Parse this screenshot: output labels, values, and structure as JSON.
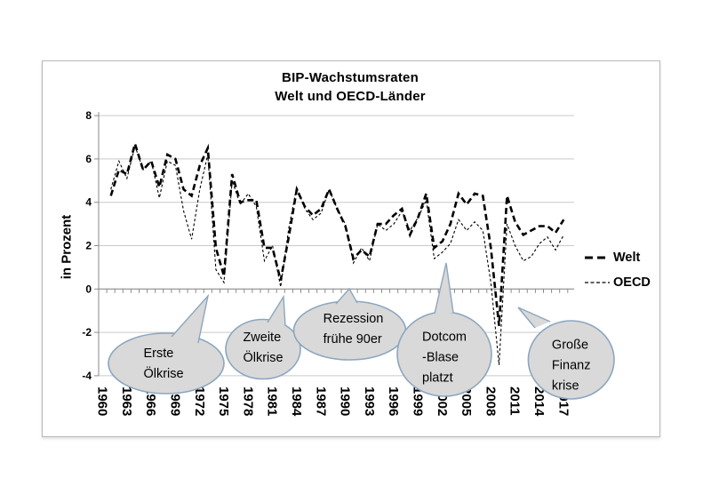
{
  "chart": {
    "title_line1": "BIP-Wachstumsraten",
    "title_line2": "Welt und OECD-Länder",
    "y_axis_title": "in Prozent"
  },
  "colors": {
    "series": "#000000",
    "gridline": "#c9c9c9",
    "axis": "#8a8a8a",
    "bubble_fill": "#d9d9d9",
    "bubble_stroke": "#8ca6bf",
    "chart_border": "#b8b8b8"
  },
  "chart_data": {
    "type": "line",
    "title": "BIP-Wachstumsraten Welt und OECD-Länder",
    "xlabel": "",
    "ylabel": "in Prozent",
    "ylim": [
      -4,
      8
    ],
    "grid": true,
    "legend_position": "right",
    "y_ticks": [
      8,
      6,
      4,
      2,
      0,
      -2,
      -4
    ],
    "y_tick_labels": [
      "8",
      "6",
      "4",
      "2",
      "0",
      "-2",
      "-4"
    ],
    "x_range": [
      1960,
      2017
    ],
    "x_tick_labels": [
      "1960",
      "1963",
      "1966",
      "1969",
      "1972",
      "1975",
      "1978",
      "1981",
      "1984",
      "1987",
      "1990",
      "1993",
      "1996",
      "1999",
      "2002",
      "2005",
      "2008",
      "2011",
      "2014",
      "2017"
    ],
    "years": [
      1961,
      1962,
      1963,
      1964,
      1965,
      1966,
      1967,
      1968,
      1969,
      1970,
      1971,
      1972,
      1973,
      1974,
      1975,
      1976,
      1977,
      1978,
      1979,
      1980,
      1981,
      1982,
      1983,
      1984,
      1985,
      1986,
      1987,
      1988,
      1989,
      1990,
      1991,
      1992,
      1993,
      1994,
      1995,
      1996,
      1997,
      1998,
      1999,
      2000,
      2001,
      2002,
      2003,
      2004,
      2005,
      2006,
      2007,
      2008,
      2009,
      2010,
      2011,
      2012,
      2013,
      2014,
      2015,
      2016,
      2017
    ],
    "series": [
      {
        "name": "Welt",
        "line_style": "bold-long-dashes",
        "values": [
          4.3,
          5.5,
          5.3,
          6.7,
          5.5,
          5.9,
          4.7,
          6.2,
          6.0,
          4.6,
          4.3,
          5.7,
          6.5,
          1.9,
          0.6,
          5.3,
          4.0,
          4.1,
          4.1,
          1.9,
          1.9,
          0.4,
          2.4,
          4.6,
          3.8,
          3.4,
          3.7,
          4.6,
          3.7,
          2.9,
          1.4,
          1.8,
          1.5,
          3.0,
          3.0,
          3.4,
          3.7,
          2.5,
          3.3,
          4.4,
          1.9,
          2.2,
          3.0,
          4.4,
          3.9,
          4.4,
          4.3,
          1.9,
          -1.7,
          4.3,
          3.1,
          2.5,
          2.7,
          2.9,
          2.9,
          2.6,
          3.2
        ]
      },
      {
        "name": "OECD",
        "line_style": "thin-short-dashes",
        "values": [
          4.6,
          5.9,
          5.1,
          6.6,
          5.5,
          5.9,
          4.2,
          5.9,
          5.7,
          3.6,
          2.3,
          4.6,
          6.2,
          0.9,
          0.3,
          5.0,
          3.9,
          4.4,
          3.8,
          1.3,
          2.0,
          0.1,
          2.8,
          4.7,
          3.7,
          3.2,
          3.5,
          4.6,
          3.7,
          3.0,
          1.2,
          1.9,
          1.3,
          3.0,
          2.7,
          3.0,
          3.6,
          2.7,
          3.3,
          4.1,
          1.4,
          1.7,
          2.1,
          3.2,
          2.7,
          3.1,
          2.7,
          0.3,
          -3.5,
          3.0,
          2.0,
          1.3,
          1.5,
          2.1,
          2.4,
          1.8,
          2.5
        ]
      }
    ],
    "annotations": [
      {
        "text_lines": [
          "Erste",
          "Ölkrise"
        ],
        "points_to_year": 1974
      },
      {
        "text_lines": [
          "Zweite",
          "Ölkrise"
        ],
        "points_to_year": 1980
      },
      {
        "text_lines": [
          "Rezession",
          "frühe 90er"
        ],
        "points_to_year": 1991
      },
      {
        "text_lines": [
          "Dotcom",
          "-Blase",
          "platzt"
        ],
        "points_to_year": 2001
      },
      {
        "text_lines": [
          "Große",
          "Finanz",
          "krise"
        ],
        "points_to_year": 2009
      }
    ]
  }
}
